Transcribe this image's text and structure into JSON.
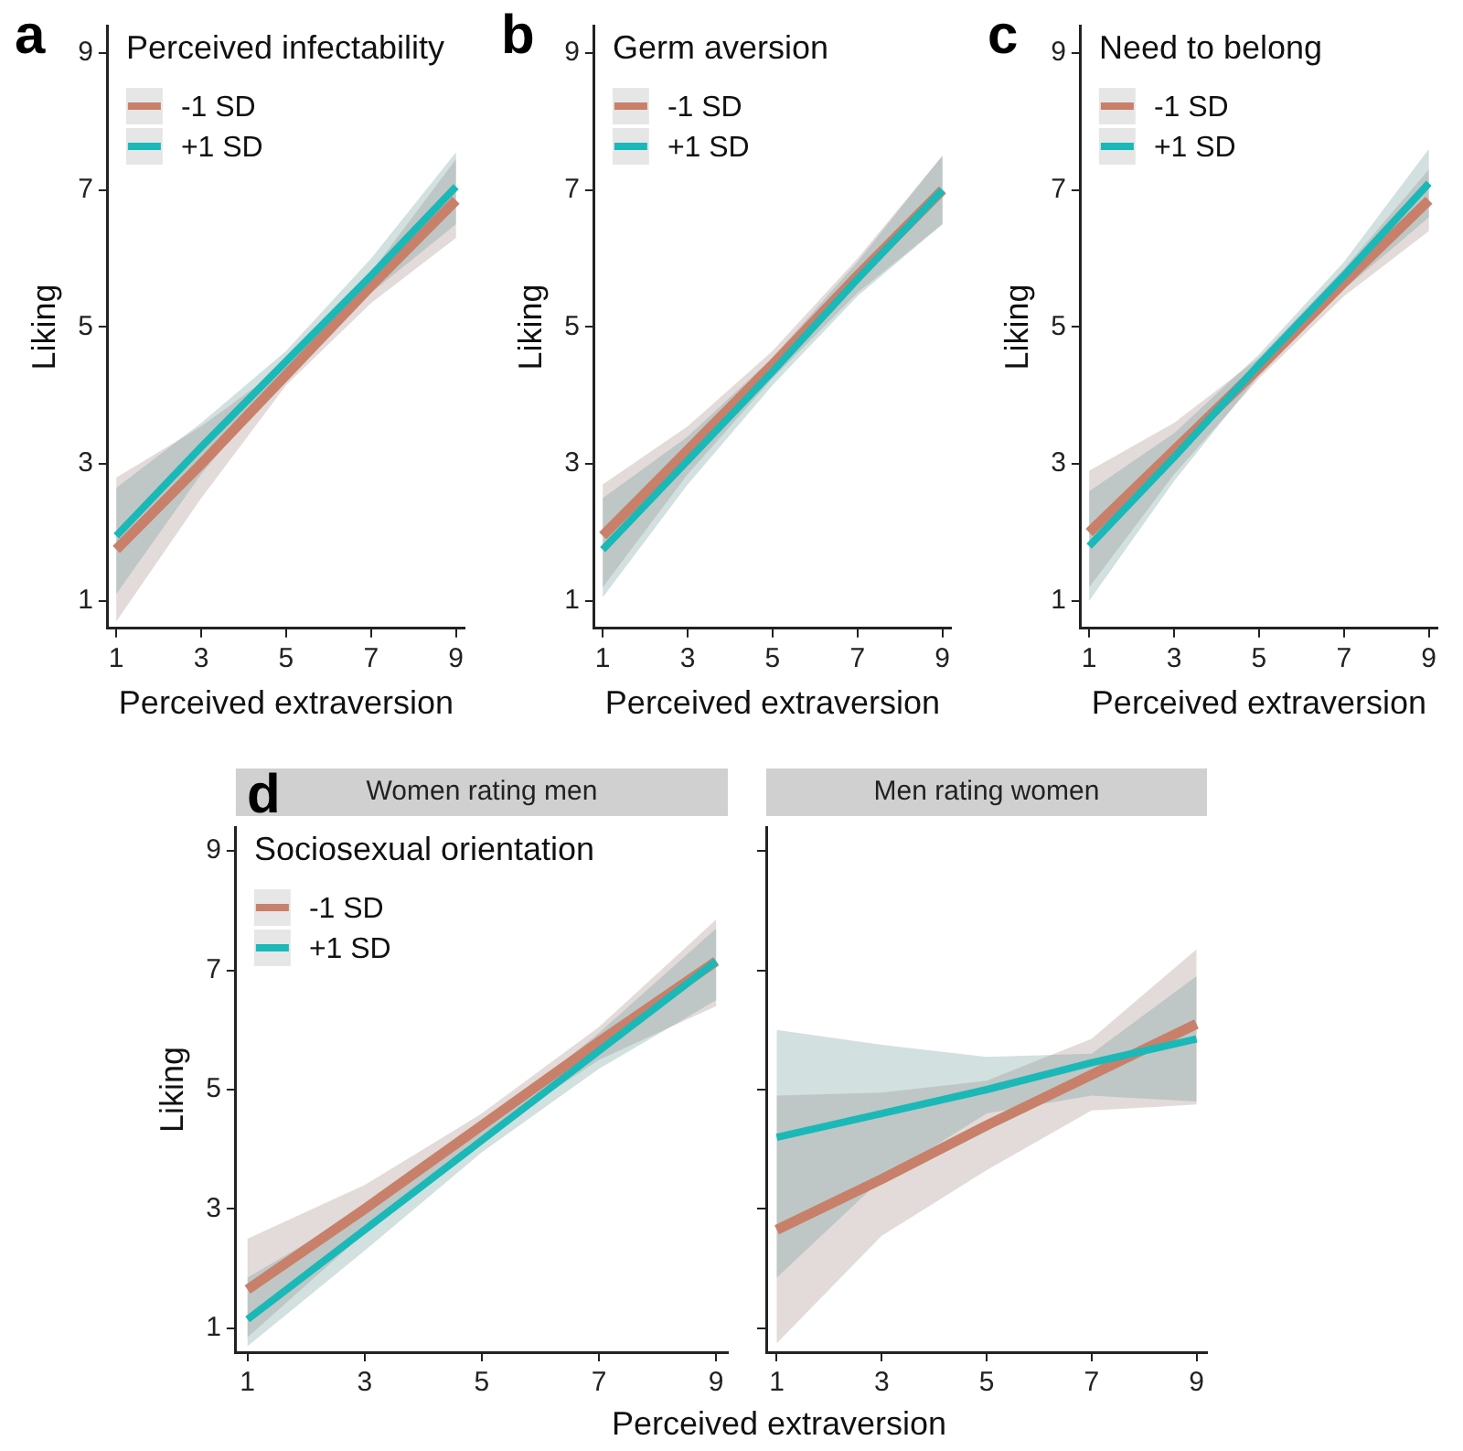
{
  "chart_data": [
    {
      "type": "line",
      "annotations": [
        "a"
      ],
      "legend_title": "Perceived infectability",
      "legend": "top left",
      "xlabel": "Perceived extraversion",
      "ylabel": "Liking",
      "x": [
        1,
        3,
        5,
        7,
        9
      ],
      "xlim": [
        0.8,
        9.2
      ],
      "xticks": [
        1,
        3,
        5,
        7,
        9
      ],
      "ylim": [
        0.6,
        9.4
      ],
      "yticks": [
        1,
        3,
        5,
        7,
        9
      ],
      "series": [
        {
          "name": "-1 SD",
          "color": "#c8806a",
          "values": [
            1.75,
            3.0,
            4.3,
            5.6,
            6.85
          ],
          "lower": [
            0.7,
            2.5,
            4.15,
            5.35,
            6.3
          ],
          "upper": [
            2.8,
            3.55,
            4.45,
            5.8,
            7.45
          ]
        },
        {
          "name": "+1 SD",
          "color": "#1bb8b8",
          "values": [
            1.95,
            3.25,
            4.5,
            5.75,
            7.05
          ],
          "lower": [
            1.1,
            2.85,
            4.35,
            5.5,
            6.5
          ],
          "upper": [
            2.65,
            3.6,
            4.65,
            6.0,
            7.55
          ]
        }
      ]
    },
    {
      "type": "line",
      "annotations": [
        "b"
      ],
      "legend_title": "Germ aversion",
      "legend": "top left",
      "xlabel": "Perceived extraversion",
      "ylabel": "Liking",
      "x": [
        1,
        3,
        5,
        7,
        9
      ],
      "xlim": [
        0.8,
        9.2
      ],
      "xticks": [
        1,
        3,
        5,
        7,
        9
      ],
      "ylim": [
        0.6,
        9.4
      ],
      "yticks": [
        1,
        3,
        5,
        7,
        9
      ],
      "series": [
        {
          "name": "-1 SD",
          "color": "#c8806a",
          "values": [
            1.95,
            3.2,
            4.45,
            5.75,
            7.0
          ],
          "lower": [
            1.2,
            2.85,
            4.25,
            5.5,
            6.5
          ],
          "upper": [
            2.7,
            3.55,
            4.65,
            6.0,
            7.5
          ]
        },
        {
          "name": "+1 SD",
          "color": "#1bb8b8",
          "values": [
            1.75,
            3.05,
            4.35,
            5.7,
            7.0
          ],
          "lower": [
            1.05,
            2.7,
            4.15,
            5.45,
            6.5
          ],
          "upper": [
            2.5,
            3.4,
            4.55,
            5.95,
            7.5
          ]
        }
      ]
    },
    {
      "type": "line",
      "annotations": [
        "c"
      ],
      "legend_title": "Need to belong",
      "legend": "top left",
      "xlabel": "Perceived extraversion",
      "ylabel": "Liking",
      "x": [
        1,
        3,
        5,
        7,
        9
      ],
      "xlim": [
        0.8,
        9.2
      ],
      "xticks": [
        1,
        3,
        5,
        7,
        9
      ],
      "ylim": [
        0.6,
        9.4
      ],
      "yticks": [
        1,
        3,
        5,
        7,
        9
      ],
      "series": [
        {
          "name": "-1 SD",
          "color": "#c8806a",
          "values": [
            2.0,
            3.2,
            4.4,
            5.65,
            6.85
          ],
          "lower": [
            1.2,
            2.85,
            4.25,
            5.45,
            6.4
          ],
          "upper": [
            2.9,
            3.6,
            4.55,
            5.85,
            7.3
          ]
        },
        {
          "name": "+1 SD",
          "color": "#1bb8b8",
          "values": [
            1.8,
            3.1,
            4.45,
            5.75,
            7.1
          ],
          "lower": [
            1.0,
            2.75,
            4.3,
            5.55,
            6.6
          ],
          "upper": [
            2.6,
            3.45,
            4.6,
            5.95,
            7.6
          ]
        }
      ]
    },
    {
      "type": "line",
      "annotations": [
        "d"
      ],
      "title": "Women rating men",
      "legend_title": "Sociosexual orientation",
      "legend": "top left",
      "xlabel": "Perceived extraversion",
      "ylabel": "Liking",
      "x": [
        1,
        3,
        5,
        7,
        9
      ],
      "xlim": [
        0.8,
        9.2
      ],
      "xticks": [
        1,
        3,
        5,
        7,
        9
      ],
      "ylim": [
        0.6,
        9.4
      ],
      "yticks": [
        1,
        3,
        5,
        7,
        9
      ],
      "series": [
        {
          "name": "-1 SD",
          "color": "#c8806a",
          "values": [
            1.65,
            3.0,
            4.4,
            5.8,
            7.15
          ],
          "lower": [
            0.85,
            2.6,
            4.2,
            5.5,
            6.4
          ],
          "upper": [
            2.5,
            3.4,
            4.6,
            6.05,
            7.85
          ]
        },
        {
          "name": "+1 SD",
          "color": "#1bb8b8",
          "values": [
            1.15,
            2.65,
            4.15,
            5.65,
            7.15
          ],
          "lower": [
            0.7,
            2.3,
            3.95,
            5.35,
            6.5
          ],
          "upper": [
            1.85,
            3.0,
            4.35,
            5.95,
            7.7
          ]
        }
      ]
    },
    {
      "type": "line",
      "title": "Men rating women",
      "tick_labels": "x",
      "x": [
        1,
        3,
        5,
        7,
        9
      ],
      "xlim": [
        0.8,
        9.2
      ],
      "xticks": [
        1,
        3,
        5,
        7,
        9
      ],
      "ylim": [
        0.6,
        9.4
      ],
      "yticks": [
        1,
        3,
        5,
        7,
        9
      ],
      "series": [
        {
          "color": "#c8806a",
          "values": [
            2.65,
            3.5,
            4.4,
            5.25,
            6.1
          ],
          "lower": [
            0.75,
            2.55,
            3.65,
            4.65,
            4.75
          ],
          "upper": [
            4.9,
            4.95,
            5.15,
            5.85,
            7.35
          ]
        },
        {
          "color": "#1bb8b8",
          "values": [
            4.2,
            4.6,
            5.0,
            5.45,
            5.85
          ],
          "lower": [
            1.85,
            3.5,
            4.6,
            4.9,
            4.8
          ],
          "upper": [
            6.0,
            5.75,
            5.55,
            5.6,
            6.9
          ]
        }
      ]
    }
  ]
}
